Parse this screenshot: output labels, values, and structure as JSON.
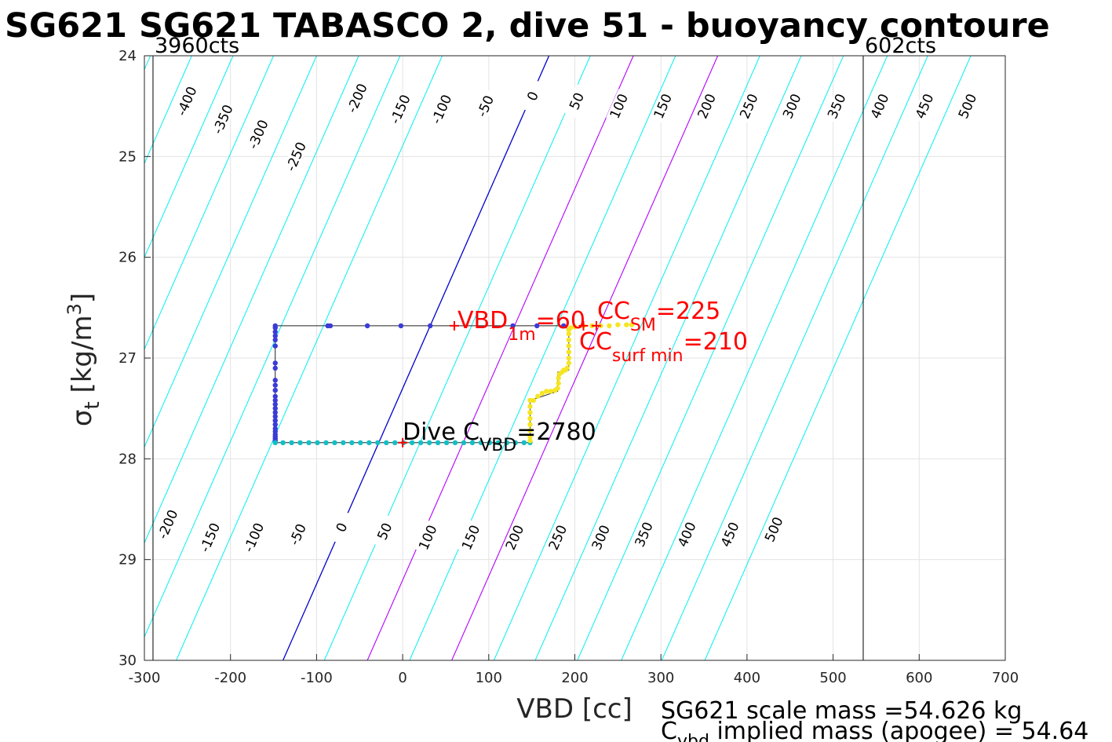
{
  "chart_data": {
    "type": "scatter",
    "title": "SG621 SG621 TABASCO 2, dive 51 - buoyancy contoure",
    "xlabel": "VBD [cc]",
    "ylabel_main": "σ",
    "ylabel_sub": "t",
    "ylabel_unit": " [kg/m",
    "ylabel_sup": "3",
    "ylabel_close": "]",
    "xlim": [
      -300,
      700
    ],
    "ylim": [
      24,
      30
    ],
    "y_reversed": true,
    "grid": true,
    "x_ticks": [
      -300,
      -200,
      -100,
      0,
      100,
      200,
      300,
      400,
      500,
      600,
      700
    ],
    "y_ticks": [
      24,
      25,
      26,
      27,
      28,
      29,
      30
    ],
    "vbd_limits": [
      {
        "vbd": -290,
        "label": "3960cts"
      },
      {
        "vbd": 535,
        "label": "602cts"
      }
    ],
    "contours": {
      "levels": [
        -400,
        -350,
        -300,
        -250,
        -200,
        -150,
        -100,
        -50,
        0,
        50,
        100,
        150,
        200,
        250,
        300,
        350,
        400,
        450,
        500
      ],
      "x_at_sigma24": [
        -293,
        -245,
        -197,
        -150,
        -100,
        -51,
        -3,
        46,
        170,
        218,
        268,
        317,
        366,
        415,
        463,
        512,
        563,
        610,
        660
      ],
      "slope_vbd_per_sigma": -51.5,
      "colors": {
        "zero": "#0000cc",
        "magenta": "#b300ff",
        "default": "#00f0f0"
      },
      "magenta_levels": [
        100,
        200
      ],
      "upper_labels": [
        {
          "level": "-400",
          "vbd": -251,
          "sigma": 24.45
        },
        {
          "level": "-350",
          "vbd": -209,
          "sigma": 24.63
        },
        {
          "level": "-300",
          "vbd": -168,
          "sigma": 24.78
        },
        {
          "level": "-250",
          "vbd": -124,
          "sigma": 25.0
        },
        {
          "level": "-200",
          "vbd": -53,
          "sigma": 24.42
        },
        {
          "level": "-150",
          "vbd": -3,
          "sigma": 24.53
        },
        {
          "level": "-100",
          "vbd": 45,
          "sigma": 24.53
        },
        {
          "level": "-50",
          "vbd": 96,
          "sigma": 24.5
        },
        {
          "level": "0",
          "vbd": 151,
          "sigma": 24.4
        },
        {
          "level": "50",
          "vbd": 202,
          "sigma": 24.45
        },
        {
          "level": "100",
          "vbd": 251,
          "sigma": 24.5
        },
        {
          "level": "150",
          "vbd": 302,
          "sigma": 24.5
        },
        {
          "level": "200",
          "vbd": 353,
          "sigma": 24.5
        },
        {
          "level": "250",
          "vbd": 402,
          "sigma": 24.5
        },
        {
          "level": "300",
          "vbd": 452,
          "sigma": 24.5
        },
        {
          "level": "350",
          "vbd": 504,
          "sigma": 24.5
        },
        {
          "level": "400",
          "vbd": 554,
          "sigma": 24.5
        },
        {
          "level": "450",
          "vbd": 606,
          "sigma": 24.5
        },
        {
          "level": "500",
          "vbd": 656,
          "sigma": 24.5
        }
      ],
      "lower_labels": [
        {
          "level": "-200",
          "vbd": -273,
          "sigma": 28.65
        },
        {
          "level": "-150",
          "vbd": -224,
          "sigma": 28.78
        },
        {
          "level": "-100",
          "vbd": -173,
          "sigma": 28.78
        },
        {
          "level": "-50",
          "vbd": -122,
          "sigma": 28.75
        },
        {
          "level": "0",
          "vbd": -71,
          "sigma": 28.68
        },
        {
          "level": "50",
          "vbd": -21,
          "sigma": 28.72
        },
        {
          "level": "100",
          "vbd": 29,
          "sigma": 28.78
        },
        {
          "level": "150",
          "vbd": 79,
          "sigma": 28.78
        },
        {
          "level": "200",
          "vbd": 130,
          "sigma": 28.78
        },
        {
          "level": "250",
          "vbd": 180,
          "sigma": 28.78
        },
        {
          "level": "300",
          "vbd": 230,
          "sigma": 28.78
        },
        {
          "level": "350",
          "vbd": 280,
          "sigma": 28.75
        },
        {
          "level": "400",
          "vbd": 330,
          "sigma": 28.75
        },
        {
          "level": "450",
          "vbd": 380,
          "sigma": 28.75
        },
        {
          "level": "500",
          "vbd": 431,
          "sigma": 28.7
        }
      ]
    },
    "series": [
      {
        "color": "#3b3bd6",
        "x": [
          -148,
          -87,
          -84,
          -41,
          -2,
          32,
          128,
          156,
          187,
          -148,
          -148,
          -148,
          -148,
          -148,
          -148,
          -148,
          -148,
          -148,
          -148,
          -148,
          -148,
          -148,
          -148,
          -148,
          -148,
          -148,
          -148,
          -148,
          -148,
          -148,
          -148,
          -148,
          -148,
          -148
        ],
        "y": [
          26.68,
          26.68,
          26.68,
          26.68,
          26.68,
          26.68,
          26.68,
          26.68,
          26.68,
          26.7,
          26.74,
          26.78,
          26.82,
          26.88,
          27.05,
          27.1,
          27.22,
          27.27,
          27.32,
          27.38,
          27.42,
          27.46,
          27.5,
          27.54,
          27.58,
          27.62,
          27.66,
          27.7,
          27.73,
          27.76,
          27.78,
          27.8,
          27.82,
          27.83
        ]
      },
      {
        "color": "#12bfc4",
        "x": [
          -148,
          -139,
          -129,
          -119,
          -109,
          -99,
          -89,
          -79,
          -69,
          -59,
          -49,
          -39,
          -29,
          -19,
          -9,
          1,
          11,
          21,
          31,
          41,
          51,
          61,
          71,
          81,
          91,
          101,
          111,
          121,
          131,
          141,
          148
        ],
        "y": [
          27.84,
          27.84,
          27.84,
          27.84,
          27.84,
          27.84,
          27.84,
          27.84,
          27.84,
          27.84,
          27.84,
          27.84,
          27.84,
          27.84,
          27.84,
          27.84,
          27.84,
          27.84,
          27.84,
          27.84,
          27.84,
          27.84,
          27.84,
          27.84,
          27.84,
          27.84,
          27.84,
          27.84,
          27.84,
          27.84,
          27.84
        ]
      },
      {
        "color": "#f5e524",
        "x": [
          148,
          148,
          148,
          148,
          148,
          148,
          148,
          148,
          152,
          157,
          162,
          167,
          172,
          177,
          180,
          181,
          181,
          182,
          185,
          187,
          189,
          191,
          193,
          193,
          193,
          193,
          193,
          193,
          193,
          195,
          200,
          210,
          220,
          230,
          240,
          250,
          260,
          266
        ],
        "y": [
          27.82,
          27.78,
          27.72,
          27.66,
          27.6,
          27.54,
          27.48,
          27.42,
          27.42,
          27.38,
          27.35,
          27.33,
          27.33,
          27.32,
          27.3,
          27.25,
          27.2,
          27.16,
          27.14,
          27.12,
          27.12,
          27.1,
          27.05,
          27.0,
          26.94,
          26.88,
          26.82,
          26.76,
          26.72,
          26.7,
          26.69,
          26.68,
          26.68,
          26.68,
          26.68,
          26.67,
          26.67,
          26.67
        ]
      }
    ],
    "connector_path": {
      "x": [
        -148,
        187,
        193,
        193,
        193,
        180,
        180,
        148,
        148,
        -148,
        -148
      ],
      "y": [
        26.68,
        26.68,
        26.72,
        27.0,
        27.12,
        27.14,
        27.33,
        27.42,
        27.84,
        27.84,
        26.68
      ]
    },
    "markers": [
      {
        "name": "vbd-1m",
        "vbd": 60,
        "sigma": 26.68
      },
      {
        "name": "cc-sm",
        "vbd": 225,
        "sigma": 26.68
      },
      {
        "name": "cc-surf-min",
        "vbd": 210,
        "sigma": 26.68
      },
      {
        "name": "dive-c-vbd",
        "vbd": 0,
        "sigma": 27.84
      }
    ],
    "annotations": {
      "vbd_1m": {
        "main": "VBD",
        "sub": "1m",
        "tail": "=60"
      },
      "cc_sm": {
        "main": "CC",
        "sub": "SM",
        "tail": "=225"
      },
      "cc_surf_min": {
        "main": "CC",
        "sub": "surf min",
        "tail": "=210"
      },
      "dive_c_vbd": {
        "main": "Dive C",
        "sub": "VBD",
        "tail": "=2780"
      }
    },
    "footer": {
      "line1": "SG621 scale mass =54.626 kg",
      "line2_main": "C",
      "line2_sub": "vbd",
      "line2_tail": " implied mass (apogee) = 54.64"
    }
  }
}
